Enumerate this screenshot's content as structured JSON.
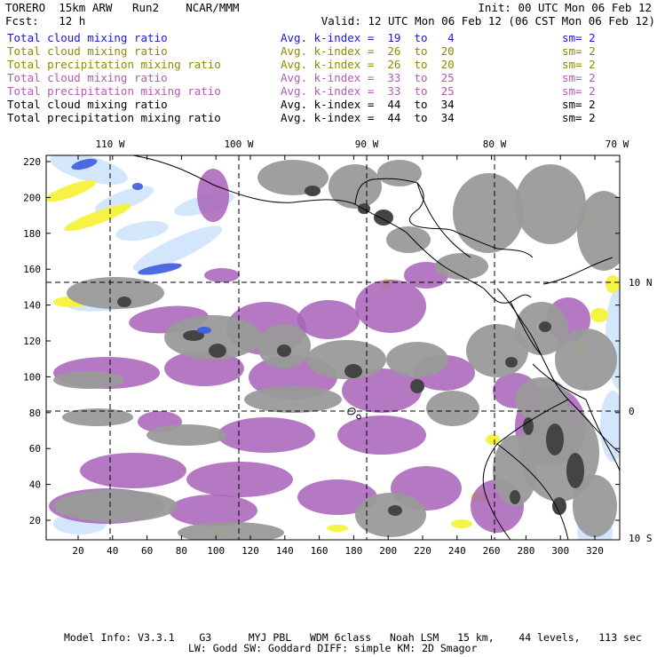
{
  "header": {
    "line1_left": "TORERO  15km ARW   Run2    NCAR/MMM",
    "line1_right": "Init: 00 UTC Mon 06 Feb 12",
    "line2_left": "Fcst:   12 h",
    "line2_right": "Valid: 12 UTC Mon 06 Feb 12 (06 CST Mon 06 Feb 12)"
  },
  "fields": [
    {
      "name": "Total cloud mixing ratio",
      "avg": "Avg. k-index =  19  to   4",
      "sm": "sm= 2",
      "color": "#1a1acc"
    },
    {
      "name": "Total cloud mixing ratio",
      "avg": "Avg. k-index =  26  to  20",
      "sm": "sm= 2",
      "color": "#8c8c00"
    },
    {
      "name": "Total precipitation mixing ratio",
      "avg": "Avg. k-index =  26  to  20",
      "sm": "sm= 2",
      "color": "#8c8c00"
    },
    {
      "name": "Total cloud mixing ratio",
      "avg": "Avg. k-index =  33  to  25",
      "sm": "sm= 2",
      "color": "#b45ab4"
    },
    {
      "name": "Total precipitation mixing ratio",
      "avg": "Avg. k-index =  33  to  25",
      "sm": "sm= 2",
      "color": "#b45ab4"
    },
    {
      "name": "Total cloud mixing ratio",
      "avg": "Avg. k-index =  44  to  34",
      "sm": "sm= 2",
      "color": "#000000"
    },
    {
      "name": "Total precipitation mixing ratio",
      "avg": "Avg. k-index =  44  to  34",
      "sm": "sm= 2",
      "color": "#000000"
    }
  ],
  "map": {
    "lon_labels": [
      "110 W",
      "100 W",
      "90 W",
      "80 W",
      "70 W"
    ],
    "lat_labels": [
      "10 N",
      "0",
      "10 S"
    ],
    "y_ticks": [
      "220",
      "200",
      "180",
      "160",
      "140",
      "120",
      "100",
      "80",
      "60",
      "40",
      "20"
    ],
    "x_ticks": [
      "20",
      "40",
      "60",
      "80",
      "100",
      "120",
      "140",
      "160",
      "180",
      "200",
      "220",
      "240",
      "260",
      "280",
      "300",
      "320"
    ],
    "colors": {
      "gray": "#9a9a9a",
      "dark": "#444444",
      "purple": "#a862b8",
      "light_blue": "#cfe3fb",
      "blue": "#3a5ce0",
      "yellow": "#f6f23a"
    }
  },
  "footer": {
    "line1": "Model Info: V3.3.1    G3      MYJ PBL   WDM 6class   Noah LSM   15 km,    44 levels,   113 sec",
    "line2": "LW: Godd SW: Goddard DIFF: simple KM: 2D Smagor"
  }
}
